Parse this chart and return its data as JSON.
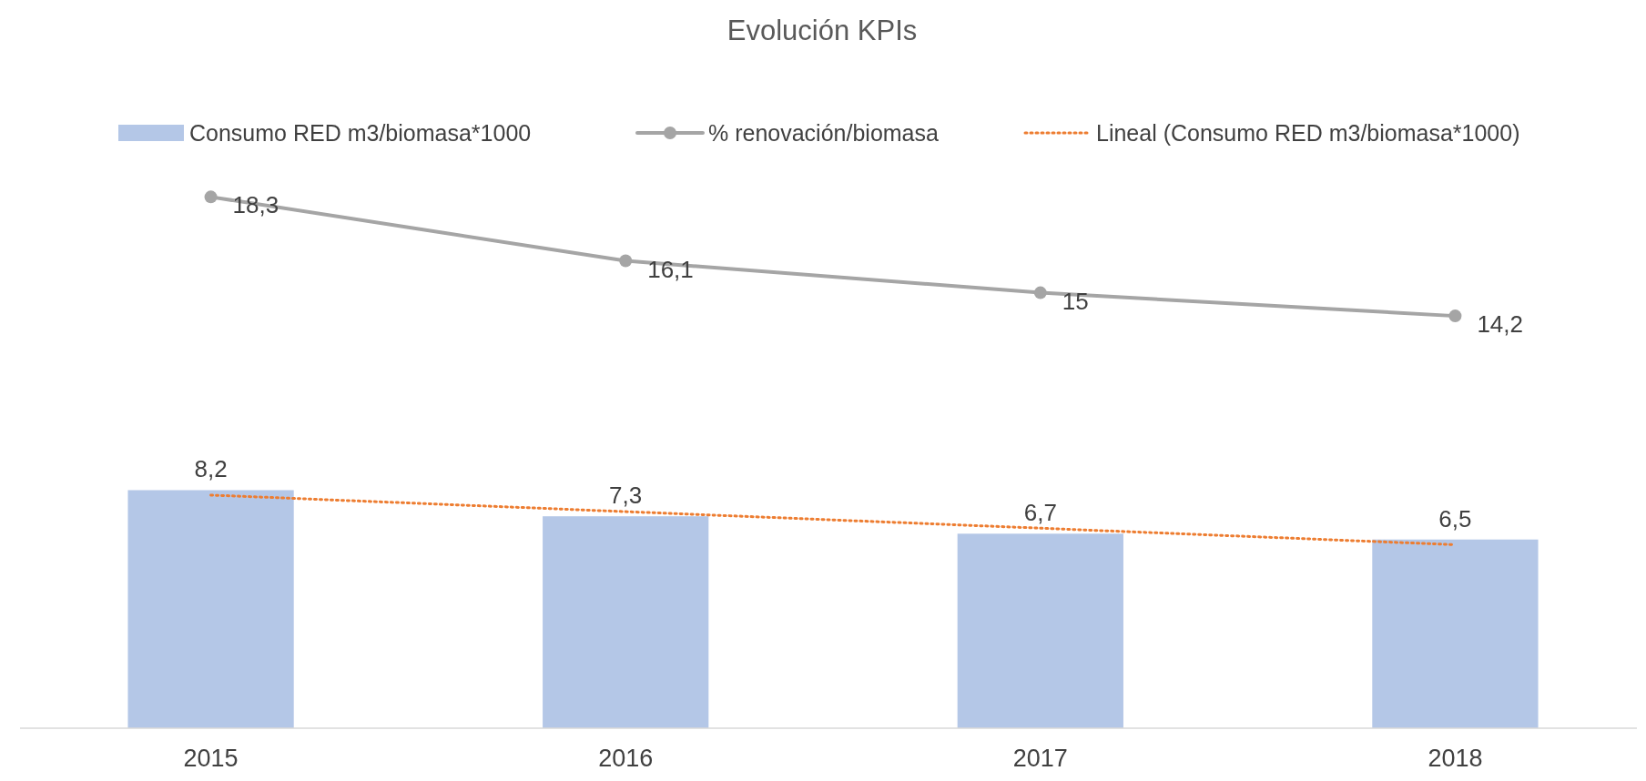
{
  "chart_data": {
    "type": "bar",
    "title": "Evolución KPIs",
    "categories": [
      "2015",
      "2016",
      "2017",
      "2018"
    ],
    "legend": "top",
    "tick_labels": "x",
    "series": [
      {
        "name": "Consumo RED m3/biomasa*1000",
        "color": "#b4c7e7",
        "values": [
          8.2,
          7.3,
          6.7,
          6.5
        ],
        "value_labels": [
          "8,2",
          "7,3",
          "6,7",
          "6,5"
        ]
      },
      {
        "name": "% renovación/biomasa",
        "type": "line",
        "color": "#a5a5a5",
        "marker": "circle",
        "line_style": "solid",
        "values": [
          18.3,
          16.1,
          15,
          14.2
        ],
        "value_labels": [
          "18,3",
          "16,1",
          "15",
          "14,2"
        ]
      },
      {
        "name": "Lineal (Consumo RED m3/biomasa*1000)",
        "type": "line",
        "color": "#ed7d31",
        "marker": "none",
        "line_style": "dotted",
        "values": [
          8.03,
          7.46,
          6.89,
          6.32
        ]
      }
    ]
  }
}
